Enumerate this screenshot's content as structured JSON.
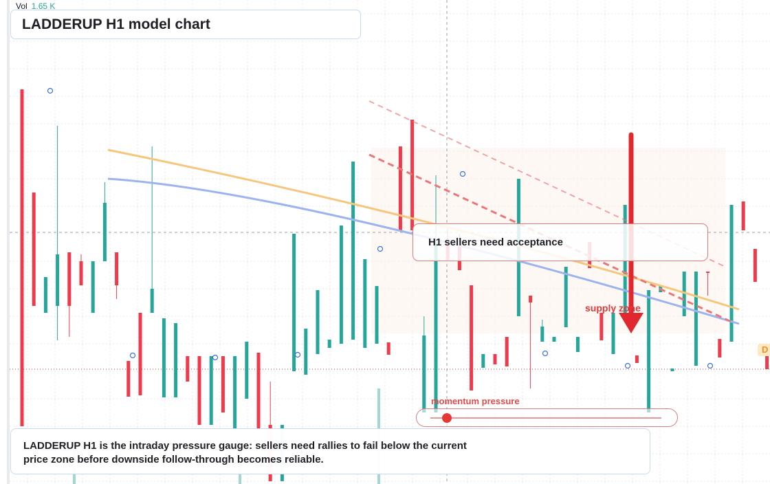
{
  "volume": {
    "label": "Vol",
    "value": "1.65 K"
  },
  "title": "LADDERUP H1 model chart",
  "callout": "H1 sellers need acceptance",
  "supply_label": "supply zone",
  "momentum": {
    "label": "momentum pressure",
    "level": 0.07
  },
  "note": {
    "line1": "LADDERUP H1 is the intraday pressure gauge: sellers need rallies to fail below the current",
    "line2": "price zone before downside follow-through becomes reliable."
  },
  "badge": "D",
  "colors": {
    "up": "#26a69a",
    "down": "#ef3a4c",
    "volume": "#9fd9d2",
    "ma_orange": "#f5c77e",
    "ma_blue": "#9db3f0",
    "trend": "#e87878",
    "arrow": "#e0282e",
    "marker": "#3b6fe0"
  },
  "chart_data": {
    "type": "candlestick",
    "candles": [
      {
        "dir": "down",
        "o": 620,
        "c": 130,
        "h": 620,
        "l": 130
      },
      {
        "dir": "down",
        "o": 445,
        "c": 280,
        "h": 445,
        "l": 280
      },
      {
        "dir": "up",
        "o": 455,
        "c": 403,
        "h": 455,
        "l": 403
      },
      {
        "dir": "up",
        "o": 370,
        "c": 445,
        "h": 495,
        "l": 183
      },
      {
        "dir": "down",
        "o": 367,
        "c": 445,
        "h": 490,
        "l": 367
      },
      {
        "dir": "down",
        "o": 380,
        "c": 415,
        "h": 415,
        "l": 370
      },
      {
        "dir": "up",
        "o": 455,
        "c": 380,
        "h": 455,
        "l": 380
      },
      {
        "dir": "up",
        "o": 380,
        "c": 295,
        "h": 380,
        "l": 265
      },
      {
        "dir": "down",
        "o": 367,
        "c": 415,
        "h": 435,
        "l": 367
      },
      {
        "dir": "down",
        "o": 525,
        "c": 577,
        "h": 577,
        "l": 525
      },
      {
        "dir": "down",
        "o": 455,
        "c": 575,
        "h": 575,
        "l": 455
      },
      {
        "dir": "up",
        "o": 455,
        "c": 420,
        "h": 455,
        "l": 213
      },
      {
        "dir": "up",
        "o": 578,
        "c": 463,
        "h": 578,
        "l": 463
      },
      {
        "dir": "up",
        "o": 578,
        "c": 470,
        "h": 578,
        "l": 470
      },
      {
        "dir": "down",
        "o": 518,
        "c": 555,
        "h": 555,
        "l": 518
      },
      {
        "dir": "down",
        "o": 518,
        "c": 618,
        "h": 618,
        "l": 518
      },
      {
        "dir": "up",
        "o": 618,
        "c": 518,
        "h": 618,
        "l": 518
      },
      {
        "dir": "down",
        "o": 518,
        "c": 600,
        "h": 600,
        "l": 518
      },
      {
        "dir": "up",
        "o": 625,
        "c": 518,
        "h": 625,
        "l": 518
      },
      {
        "dir": "up",
        "o": 580,
        "c": 497,
        "h": 580,
        "l": 497
      },
      {
        "dir": "down",
        "o": 513,
        "c": 625,
        "h": 625,
        "l": 513
      },
      {
        "dir": "down",
        "o": 618,
        "c": 700,
        "h": 700,
        "l": 555
      },
      {
        "dir": "up",
        "o": 700,
        "c": 618,
        "h": 700,
        "l": 618
      },
      {
        "dir": "up",
        "o": 540,
        "c": 340,
        "h": 540,
        "l": 340
      },
      {
        "dir": "up",
        "o": 545,
        "c": 478,
        "h": 545,
        "l": 478
      },
      {
        "dir": "up",
        "o": 515,
        "c": 422,
        "h": 515,
        "l": 422
      },
      {
        "dir": "up",
        "o": 506,
        "c": 494,
        "h": 506,
        "l": 494
      },
      {
        "dir": "up",
        "o": 500,
        "c": 328,
        "h": 500,
        "l": 328
      },
      {
        "dir": "up",
        "o": 494,
        "c": 235,
        "h": 494,
        "l": 235
      },
      {
        "dir": "up",
        "o": 506,
        "c": 377,
        "h": 506,
        "l": 377
      },
      {
        "dir": "up",
        "o": 500,
        "c": 416,
        "h": 500,
        "l": 416
      },
      {
        "dir": "down",
        "o": 498,
        "c": 516,
        "h": 516,
        "l": 498
      },
      {
        "dir": "down",
        "o": 213,
        "c": 335,
        "h": 335,
        "l": 213
      },
      {
        "dir": "down",
        "o": 174,
        "c": 335,
        "h": 335,
        "l": 174
      },
      {
        "dir": "up",
        "o": 600,
        "c": 488,
        "h": 600,
        "l": 460
      },
      {
        "dir": "up",
        "o": 600,
        "c": 355,
        "h": 600,
        "l": 255
      },
      {
        "dir": "down",
        "o": 355,
        "c": 378,
        "h": 378,
        "l": 330
      },
      {
        "dir": "down",
        "o": 355,
        "c": 393,
        "h": 393,
        "l": 340
      },
      {
        "dir": "down",
        "o": 415,
        "c": 568,
        "h": 568,
        "l": 415
      },
      {
        "dir": "up",
        "o": 535,
        "c": 515,
        "h": 535,
        "l": 515
      },
      {
        "dir": "down",
        "o": 515,
        "c": 530,
        "h": 530,
        "l": 515
      },
      {
        "dir": "down",
        "o": 490,
        "c": 533,
        "h": 533,
        "l": 490
      },
      {
        "dir": "up",
        "o": 460,
        "c": 260,
        "h": 460,
        "l": 260
      },
      {
        "dir": "down",
        "o": 430,
        "c": 440,
        "h": 565,
        "l": 430
      },
      {
        "dir": "up",
        "o": 497,
        "c": 475,
        "h": 497,
        "l": 465
      },
      {
        "dir": "up",
        "o": 497,
        "c": 490,
        "h": 497,
        "l": 490
      },
      {
        "dir": "up",
        "o": 476,
        "c": 388,
        "h": 476,
        "l": 388
      },
      {
        "dir": "up",
        "o": 512,
        "c": 490,
        "h": 512,
        "l": 490
      },
      {
        "dir": "down",
        "o": 352,
        "c": 390,
        "h": 390,
        "l": 352
      },
      {
        "dir": "down",
        "o": 455,
        "c": 495,
        "h": 495,
        "l": 455
      },
      {
        "dir": "up",
        "o": 515,
        "c": 455,
        "h": 515,
        "l": 455
      },
      {
        "dir": "up",
        "o": 455,
        "c": 298,
        "h": 455,
        "l": 298
      },
      {
        "dir": "down",
        "o": 517,
        "c": 528,
        "h": 528,
        "l": 517
      },
      {
        "dir": "up",
        "o": 600,
        "c": 422,
        "h": 600,
        "l": 422
      },
      {
        "dir": "up",
        "o": 425,
        "c": 415,
        "h": 425,
        "l": 415
      },
      {
        "dir": "up",
        "o": 540,
        "c": 536,
        "h": 540,
        "l": 536
      },
      {
        "dir": "up",
        "o": 460,
        "c": 395,
        "h": 460,
        "l": 395
      },
      {
        "dir": "up",
        "o": 532,
        "c": 395,
        "h": 532,
        "l": 395
      },
      {
        "dir": "down",
        "o": 395,
        "c": 395,
        "h": 430,
        "l": 395
      },
      {
        "dir": "down",
        "o": 493,
        "c": 520,
        "h": 520,
        "l": 493
      },
      {
        "dir": "up",
        "o": 497,
        "c": 298,
        "h": 497,
        "l": 298
      },
      {
        "dir": "down",
        "o": 293,
        "c": 335,
        "h": 335,
        "l": 293
      },
      {
        "dir": "down",
        "o": 362,
        "c": 410,
        "h": 410,
        "l": 362
      },
      {
        "dir": "down",
        "o": 500,
        "c": 537,
        "h": 537,
        "l": 500
      }
    ]
  }
}
